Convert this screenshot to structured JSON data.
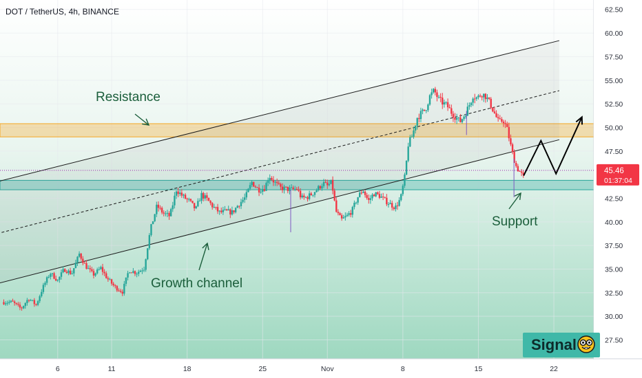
{
  "chart_data": {
    "type": "candlestick",
    "title": "DOT / TetherUS, 4h, BINANCE",
    "ylim": [
      25.5,
      63.5
    ],
    "y_ticks": [
      "62.50",
      "60.00",
      "57.50",
      "55.00",
      "52.50",
      "50.00",
      "47.50",
      "45.00",
      "42.50",
      "40.00",
      "37.50",
      "35.00",
      "32.50",
      "30.00",
      "27.50"
    ],
    "x_ticks": [
      {
        "label": "6",
        "day": 6
      },
      {
        "label": "11",
        "day": 11
      },
      {
        "label": "18",
        "day": 18
      },
      {
        "label": "25",
        "day": 25
      },
      {
        "label": "Nov",
        "day": 31
      },
      {
        "label": "8",
        "day": 38
      },
      {
        "label": "15",
        "day": 45
      },
      {
        "label": "22",
        "day": 52
      }
    ],
    "price_series": [
      [
        1.8,
        31.5
      ],
      [
        2.6,
        30.8
      ],
      [
        3.3,
        31.9
      ],
      [
        4.0,
        31.2
      ],
      [
        4.6,
        33.0
      ],
      [
        5.3,
        34.6
      ],
      [
        6.0,
        33.8
      ],
      [
        6.6,
        35.0
      ],
      [
        7.3,
        34.5
      ],
      [
        8.0,
        36.6
      ],
      [
        8.6,
        35.3
      ],
      [
        9.3,
        34.4
      ],
      [
        10.0,
        35.1
      ],
      [
        10.6,
        34.0
      ],
      [
        11.3,
        33.1
      ],
      [
        12.0,
        32.6
      ],
      [
        12.6,
        34.9
      ],
      [
        13.3,
        34.6
      ],
      [
        14.0,
        35.1
      ],
      [
        14.6,
        39.2
      ],
      [
        15.2,
        41.7
      ],
      [
        15.8,
        40.9
      ],
      [
        16.4,
        40.6
      ],
      [
        17.0,
        43.4
      ],
      [
        17.6,
        42.7
      ],
      [
        18.2,
        42.2
      ],
      [
        18.8,
        41.3
      ],
      [
        19.3,
        42.9
      ],
      [
        19.9,
        42.3
      ],
      [
        20.4,
        41.6
      ],
      [
        21.0,
        41.0
      ],
      [
        21.6,
        41.1
      ],
      [
        22.2,
        41.0
      ],
      [
        22.8,
        41.9
      ],
      [
        23.4,
        42.6
      ],
      [
        24.0,
        44.2
      ],
      [
        24.6,
        43.4
      ],
      [
        25.2,
        43.6
      ],
      [
        25.6,
        44.9
      ],
      [
        26.1,
        44.2
      ],
      [
        26.6,
        43.6
      ],
      [
        27.2,
        43.5
      ],
      [
        27.6,
        43.4
      ],
      [
        28.2,
        43.5
      ],
      [
        28.6,
        42.5
      ],
      [
        29.1,
        42.6
      ],
      [
        29.6,
        43.0
      ],
      [
        30.1,
        43.5
      ],
      [
        30.6,
        44.1
      ],
      [
        31.0,
        43.8
      ],
      [
        31.4,
        44.2
      ],
      [
        31.8,
        41.1
      ],
      [
        32.3,
        40.2
      ],
      [
        32.8,
        40.6
      ],
      [
        33.3,
        41.2
      ],
      [
        33.8,
        42.6
      ],
      [
        34.3,
        43.4
      ],
      [
        34.8,
        42.2
      ],
      [
        35.3,
        43.0
      ],
      [
        35.8,
        42.8
      ],
      [
        36.3,
        42.3
      ],
      [
        36.8,
        41.9
      ],
      [
        37.3,
        41.5
      ],
      [
        37.8,
        42.5
      ],
      [
        38.2,
        44.9
      ],
      [
        38.5,
        48.2
      ],
      [
        38.9,
        49.2
      ],
      [
        39.3,
        51.0
      ],
      [
        39.7,
        51.5
      ],
      [
        40.1,
        51.9
      ],
      [
        40.5,
        53.3
      ],
      [
        40.9,
        53.9
      ],
      [
        41.3,
        53.0
      ],
      [
        41.7,
        52.6
      ],
      [
        42.1,
        52.3
      ],
      [
        42.5,
        51.6
      ],
      [
        42.9,
        51.1
      ],
      [
        43.3,
        50.6
      ],
      [
        43.7,
        51.3
      ],
      [
        44.1,
        52.2
      ],
      [
        44.5,
        53.4
      ],
      [
        44.9,
        53.1
      ],
      [
        45.3,
        53.6
      ],
      [
        45.7,
        53.3
      ],
      [
        46.1,
        52.5
      ],
      [
        46.5,
        51.5
      ],
      [
        46.9,
        50.5
      ],
      [
        47.3,
        50.8
      ],
      [
        47.7,
        49.7
      ],
      [
        48.1,
        47.5
      ],
      [
        48.5,
        45.9
      ],
      [
        48.9,
        45.2
      ],
      [
        49.2,
        44.7
      ]
    ],
    "channel_lines": [
      {
        "name": "upper",
        "x": [
          -0.5,
          52.5
        ],
        "y": [
          44.0,
          59.2
        ]
      },
      {
        "name": "mid",
        "x": [
          -0.5,
          52.5
        ],
        "y": [
          38.5,
          53.9
        ]
      },
      {
        "name": "lower",
        "x": [
          -0.5,
          52.5
        ],
        "y": [
          33.2,
          48.7
        ]
      }
    ],
    "zones": [
      {
        "name": "resistance",
        "y": [
          49.0,
          50.4
        ],
        "color": "#f5a623"
      },
      {
        "name": "support",
        "y": [
          43.4,
          44.4
        ],
        "color": "#26a69a"
      }
    ],
    "current_price": {
      "value": 45.46,
      "label": "45.46",
      "countdown": "01:37:04",
      "color": "#f23645"
    },
    "projection": {
      "x": [
        49.2,
        50.8,
        52.2,
        54.6
      ],
      "y": [
        44.9,
        48.6,
        45.1,
        51.1
      ]
    },
    "annotations": [
      {
        "name": "resistance",
        "text": "Resistance"
      },
      {
        "name": "growth-channel",
        "text": "Growth channel"
      },
      {
        "name": "support",
        "text": "Support"
      }
    ],
    "colors": {
      "up": "#26a69a",
      "down": "#f23645",
      "line": "#000000"
    }
  },
  "badge": {
    "text": "Signal",
    "icon": "nerd-face-icon"
  }
}
